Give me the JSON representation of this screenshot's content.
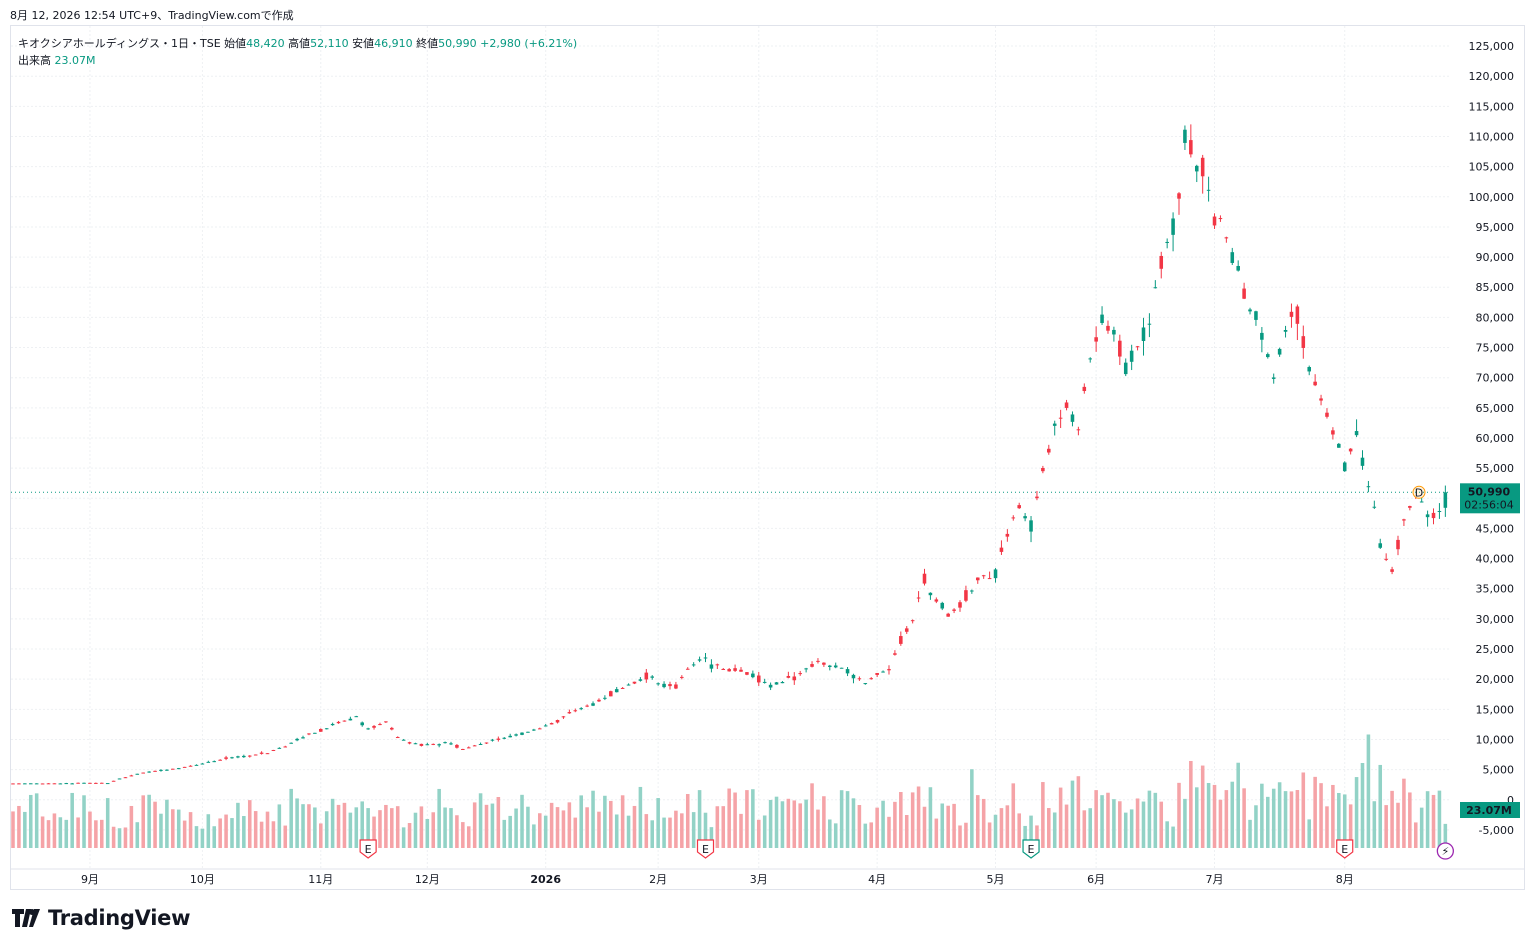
{
  "header": {
    "text": "8月 12, 2026 12:54 UTC+9、TradingView.comで作成"
  },
  "legend": {
    "symbol": "キオクシアホールディングス・1日・TSE",
    "open_label": "始値",
    "open": "48,420",
    "high_label": "高値",
    "high": "52,110",
    "low_label": "安値",
    "low": "46,910",
    "close_label": "終値",
    "close": "50,990",
    "change": "+2,980 (+6.21%)",
    "volume_label": "出来高",
    "volume": "23.07M"
  },
  "price_tag": {
    "price": "50,990",
    "countdown": "02:56:04"
  },
  "volume_tag": "23.07M",
  "dividend_marker": "D",
  "earnings_marker": "E",
  "logo_text": "TradingView",
  "colors": {
    "up": "#089981",
    "down": "#f23645",
    "vol_up": "#92d2c6",
    "vol_down": "#f5a3a7",
    "grid": "#eef0f3",
    "accent": "#089981"
  },
  "chart_data": {
    "type": "candlestick",
    "y_ticks": [
      "125,000",
      "120,000",
      "115,000",
      "110,000",
      "105,000",
      "100,000",
      "95,000",
      "90,000",
      "85,000",
      "80,000",
      "75,000",
      "70,000",
      "65,000",
      "60,000",
      "55,000",
      "50,000",
      "45,000",
      "40,000",
      "35,000",
      "30,000",
      "25,000",
      "20,000",
      "15,000",
      "10,000",
      "5,000",
      "0",
      "-5,000"
    ],
    "y_tick_values": [
      125000,
      120000,
      115000,
      110000,
      105000,
      100000,
      95000,
      90000,
      85000,
      80000,
      75000,
      70000,
      65000,
      60000,
      55000,
      50000,
      45000,
      40000,
      35000,
      30000,
      25000,
      20000,
      15000,
      10000,
      5000,
      0,
      -5000
    ],
    "ylim": [
      -8000,
      127000
    ],
    "x_labels": [
      "9月",
      "10月",
      "11月",
      "12月",
      "2026",
      "2月",
      "3月",
      "4月",
      "5月",
      "6月",
      "7月",
      "8月"
    ],
    "x_label_days": [
      13,
      32,
      52,
      70,
      90,
      109,
      126,
      146,
      166,
      183,
      203,
      225
    ],
    "total_days": 234,
    "earnings_days": [
      60,
      117,
      172,
      225
    ],
    "last": {
      "open": 48420,
      "high": 52110,
      "low": 46910,
      "close": 50990,
      "change": 2980,
      "change_pct": 6.21,
      "volume_m": 23.07
    },
    "price_path": [
      [
        0,
        2700
      ],
      [
        4,
        2700
      ],
      [
        8,
        2700
      ],
      [
        12,
        2800
      ],
      [
        16,
        2800
      ],
      [
        18,
        3500
      ],
      [
        20,
        4000
      ],
      [
        22,
        4500
      ],
      [
        25,
        4800
      ],
      [
        28,
        5200
      ],
      [
        31,
        5800
      ],
      [
        34,
        6500
      ],
      [
        37,
        7000
      ],
      [
        40,
        7300
      ],
      [
        43,
        7800
      ],
      [
        46,
        9000
      ],
      [
        49,
        10500
      ],
      [
        52,
        11500
      ],
      [
        55,
        12800
      ],
      [
        58,
        13800
      ],
      [
        60,
        11500
      ],
      [
        63,
        13000
      ],
      [
        65,
        10500
      ],
      [
        67,
        9500
      ],
      [
        70,
        9000
      ],
      [
        73,
        9500
      ],
      [
        76,
        8500
      ],
      [
        80,
        9500
      ],
      [
        84,
        10500
      ],
      [
        88,
        11500
      ],
      [
        92,
        13000
      ],
      [
        95,
        14800
      ],
      [
        98,
        15800
      ],
      [
        101,
        17500
      ],
      [
        104,
        19000
      ],
      [
        107,
        20500
      ],
      [
        109,
        19500
      ],
      [
        112,
        19000
      ],
      [
        114,
        21500
      ],
      [
        116,
        23500
      ],
      [
        118,
        22500
      ],
      [
        121,
        21500
      ],
      [
        124,
        21000
      ],
      [
        126,
        20000
      ],
      [
        128,
        19000
      ],
      [
        130,
        19800
      ],
      [
        132,
        20500
      ],
      [
        134,
        21500
      ],
      [
        136,
        23000
      ],
      [
        138,
        22500
      ],
      [
        140,
        22000
      ],
      [
        142,
        20500
      ],
      [
        144,
        19500
      ],
      [
        146,
        20500
      ],
      [
        148,
        21500
      ],
      [
        150,
        26500
      ],
      [
        152,
        30000
      ],
      [
        154,
        36500
      ],
      [
        156,
        33000
      ],
      [
        158,
        31000
      ],
      [
        160,
        32500
      ],
      [
        162,
        35000
      ],
      [
        164,
        37000
      ],
      [
        166,
        38000
      ],
      [
        168,
        44500
      ],
      [
        170,
        48500
      ],
      [
        172,
        45000
      ],
      [
        174,
        55000
      ],
      [
        176,
        62000
      ],
      [
        178,
        65000
      ],
      [
        180,
        62000
      ],
      [
        182,
        73000
      ],
      [
        184,
        80000
      ],
      [
        186,
        77000
      ],
      [
        188,
        72000
      ],
      [
        190,
        75000
      ],
      [
        192,
        80500
      ],
      [
        194,
        90000
      ],
      [
        196,
        95000
      ],
      [
        197,
        102000
      ],
      [
        198,
        110000
      ],
      [
        199,
        107000
      ],
      [
        201,
        104000
      ],
      [
        203,
        98000
      ],
      [
        205,
        92000
      ],
      [
        207,
        87000
      ],
      [
        209,
        81000
      ],
      [
        211,
        77000
      ],
      [
        213,
        70000
      ],
      [
        215,
        78000
      ],
      [
        217,
        80000
      ],
      [
        219,
        72000
      ],
      [
        221,
        66000
      ],
      [
        223,
        61000
      ],
      [
        225,
        55000
      ],
      [
        227,
        60000
      ],
      [
        229,
        52000
      ],
      [
        231,
        43000
      ],
      [
        233,
        38000
      ],
      [
        235,
        46000
      ],
      [
        237,
        52000
      ],
      [
        239,
        48000
      ],
      [
        241,
        47000
      ],
      [
        242,
        50990
      ]
    ]
  }
}
